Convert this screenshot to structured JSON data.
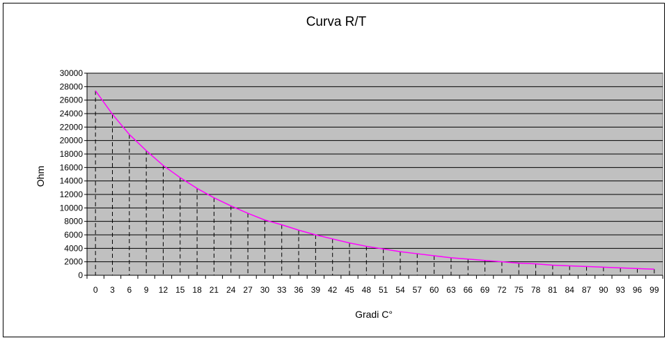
{
  "chart_data": {
    "type": "line",
    "title": "Curva R/T",
    "xlabel": "Gradi C°",
    "ylabel": "Ohm",
    "x": [
      0,
      3,
      6,
      9,
      12,
      15,
      18,
      21,
      24,
      27,
      30,
      33,
      36,
      39,
      42,
      45,
      48,
      51,
      54,
      57,
      60,
      63,
      66,
      69,
      72,
      75,
      78,
      81,
      84,
      87,
      90,
      93,
      96,
      99
    ],
    "series": [
      {
        "values": [
          27400,
          23900,
          20900,
          18500,
          16300,
          14500,
          12900,
          11500,
          10300,
          9200,
          8200,
          7500,
          6700,
          6000,
          5400,
          4800,
          4300,
          3900,
          3500,
          3200,
          2900,
          2600,
          2400,
          2200,
          2000,
          1800,
          1700,
          1500,
          1400,
          1300,
          1200,
          1100,
          1000,
          900
        ]
      }
    ],
    "ylim": [
      0,
      30000
    ],
    "y_ticks": [
      0,
      2000,
      4000,
      6000,
      8000,
      10000,
      12000,
      14000,
      16000,
      18000,
      20000,
      22000,
      24000,
      26000,
      28000,
      30000
    ],
    "grid": "horizontal",
    "drop_lines": true,
    "legend": "none",
    "colors": {
      "plot_background": "#c0c0c0",
      "line": "#ff00ff",
      "gridline": "#000000",
      "drop_line": "#000000"
    }
  }
}
